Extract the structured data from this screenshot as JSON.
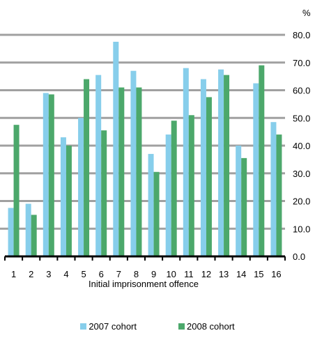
{
  "chart_data": {
    "type": "bar",
    "title": "",
    "xlabel": "Initial imprisonment offence",
    "ylabel": "%",
    "ylim": [
      0,
      80
    ],
    "yticks": [
      "0.0",
      "10.0",
      "20.0",
      "30.0",
      "40.0",
      "50.0",
      "60.0",
      "70.0",
      "80.0"
    ],
    "categories": [
      "1",
      "2",
      "3",
      "4",
      "5",
      "6",
      "7",
      "8",
      "9",
      "10",
      "11",
      "12",
      "13",
      "14",
      "15",
      "16"
    ],
    "series": [
      {
        "name": "2007 cohort",
        "color": "#87ceeb",
        "values": [
          17.5,
          19.0,
          59.0,
          43.0,
          50.0,
          65.5,
          77.5,
          67.0,
          37.0,
          44.0,
          68.0,
          64.0,
          67.5,
          40.0,
          62.5,
          48.5
        ]
      },
      {
        "name": "2008 cohort",
        "color": "#4ca86b",
        "values": [
          47.5,
          15.0,
          58.5,
          40.0,
          64.0,
          45.5,
          61.0,
          61.0,
          30.5,
          49.0,
          51.0,
          57.5,
          65.5,
          35.5,
          69.0,
          44.0
        ]
      }
    ],
    "grid": true,
    "legend_position": "bottom"
  }
}
